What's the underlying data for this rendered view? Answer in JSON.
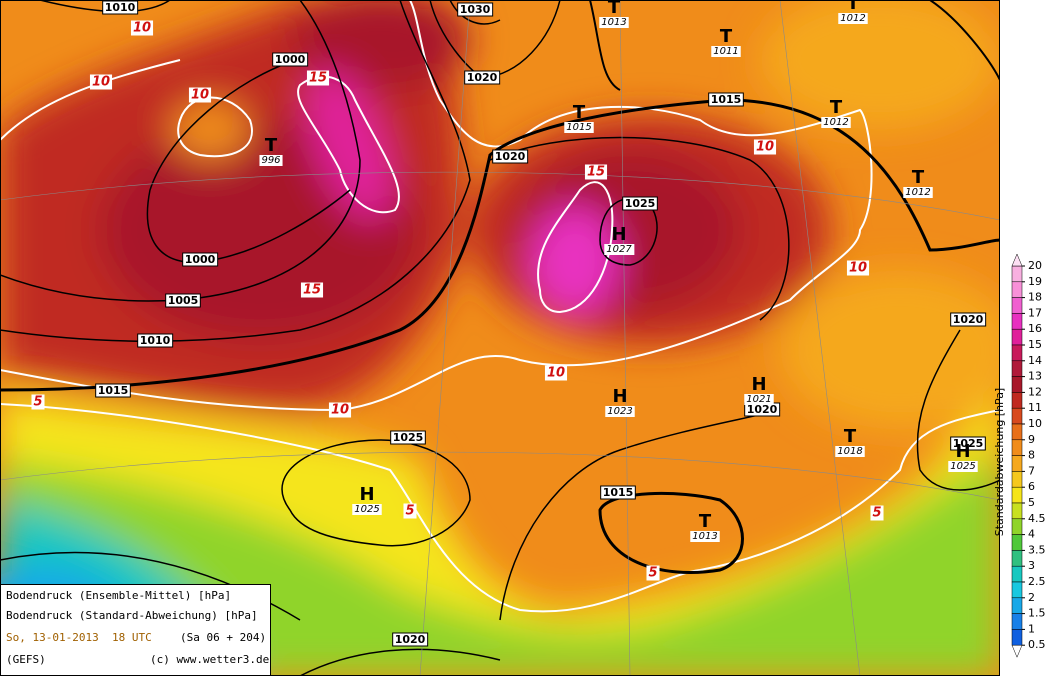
{
  "legend": {
    "mean": "Bodendruck (Ensemble-Mittel) [hPa]",
    "spread": "Bodendruck (Standard-Abweichung) [hPa]",
    "run": "So, 13-01-2013  18 UTC",
    "offset": "(Sa 06 + 204)",
    "model": "(GEFS)",
    "credit": "(c) www.wetter3.de"
  },
  "colorbar": {
    "title": "Standardabweichung [hPa]",
    "ticks": [
      20,
      19,
      18,
      17,
      16,
      15,
      14,
      13,
      12,
      11,
      10,
      9,
      8,
      7,
      6,
      5,
      4.5,
      4,
      3.5,
      3,
      2.5,
      2,
      1.5,
      1,
      0.5
    ],
    "colors": [
      "#f8b0e0",
      "#f890d8",
      "#f060d0",
      "#e830c0",
      "#e0209a",
      "#c81a5a",
      "#b01a3a",
      "#a8182a",
      "#c02a20",
      "#d84a1e",
      "#e8701a",
      "#f08c1a",
      "#f5a81e",
      "#f5c81e",
      "#f5e51a",
      "#c8e020",
      "#90d42a",
      "#50c83a",
      "#30c080",
      "#18c8c0",
      "#18c8e0",
      "#18a8e8",
      "#1880e8",
      "#1060e0"
    ]
  },
  "isobar_labels": [
    1010,
    1030,
    1020,
    1000,
    1020,
    1015,
    1025,
    1000,
    1005,
    1010,
    1015,
    1025,
    1015,
    1020,
    1020,
    1025,
    1020
  ],
  "spread_labels": [
    10,
    10,
    10,
    15,
    15,
    15,
    10,
    10,
    10,
    10,
    5,
    5,
    5,
    5
  ],
  "systems": [
    {
      "letter": "T",
      "value": 1013
    },
    {
      "letter": "T",
      "value": 1012
    },
    {
      "letter": "T",
      "value": 1011
    },
    {
      "letter": "T",
      "value": 1015
    },
    {
      "letter": "T",
      "value": 1012
    },
    {
      "letter": "T",
      "value": 996
    },
    {
      "letter": "T",
      "value": 1012
    },
    {
      "letter": "H",
      "value": 1027
    },
    {
      "letter": "H",
      "value": 1023
    },
    {
      "letter": "H",
      "value": 1021
    },
    {
      "letter": "T",
      "value": 1018
    },
    {
      "letter": "H",
      "value": 1025
    },
    {
      "letter": "H",
      "value": 1025
    },
    {
      "letter": "T",
      "value": 1013
    }
  ]
}
